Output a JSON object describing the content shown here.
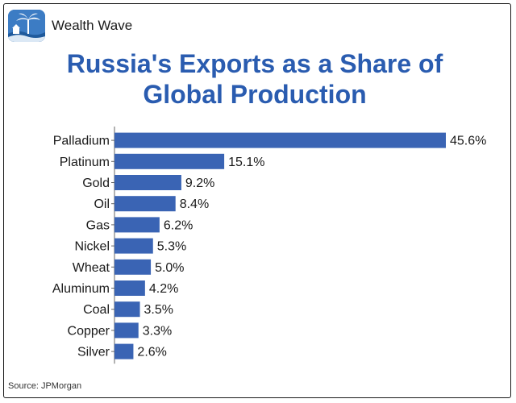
{
  "brand": {
    "name": "Wealth Wave",
    "logo_icon": "palm-tree-logo-icon"
  },
  "title_line1": "Russia's Exports as a Share of",
  "title_line2": "Global Production",
  "source": "Source: JPMorgan",
  "colors": {
    "bar": "#3a64b4",
    "title": "#2a5cb0",
    "axis": "#666666"
  },
  "chart_data": {
    "type": "bar",
    "orientation": "horizontal",
    "title": "Russia's Exports as a Share of Global Production",
    "categories": [
      "Palladium",
      "Platinum",
      "Gold",
      "Oil",
      "Gas",
      "Nickel",
      "Wheat",
      "Aluminum",
      "Coal",
      "Copper",
      "Silver"
    ],
    "values": [
      45.6,
      15.1,
      9.2,
      8.4,
      6.2,
      5.3,
      5.0,
      4.2,
      3.5,
      3.3,
      2.6
    ],
    "value_labels": [
      "45.6%",
      "15.1%",
      "9.2%",
      "8.4%",
      "6.2%",
      "5.3%",
      "5.0%",
      "4.2%",
      "3.5%",
      "3.3%",
      "2.6%"
    ],
    "xlim": [
      0,
      45.6
    ],
    "xlabel": "",
    "ylabel": "",
    "grid": false,
    "legend": "none"
  }
}
